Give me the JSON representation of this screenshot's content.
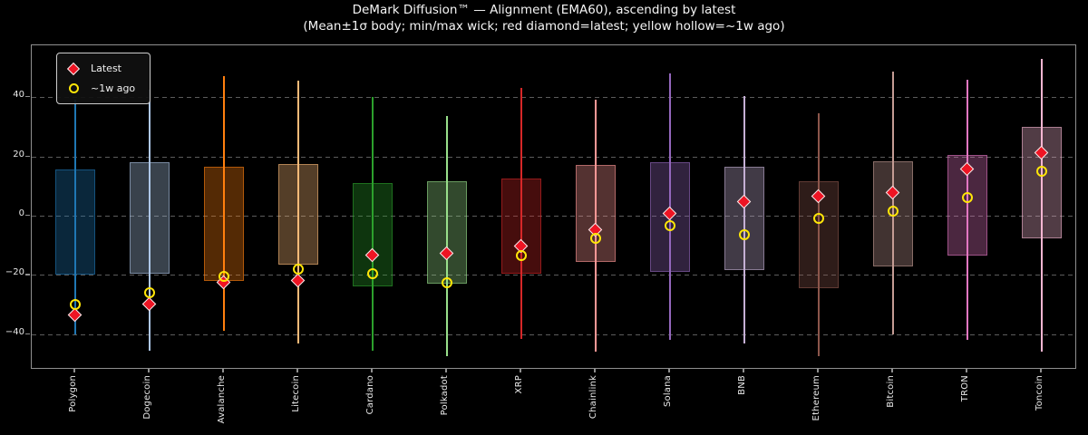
{
  "title": {
    "line1": "DeMark Diffusion™ — Alignment (EMA60), ascending by latest",
    "line2": "(Mean±1σ body; min/max wick; red diamond=latest; yellow hollow=~1w ago)"
  },
  "legend": {
    "latest_label": "Latest",
    "week_ago_label": "~1w ago",
    "latest_marker": "red-filled-diamond",
    "week_ago_marker": "yellow-hollow-circle"
  },
  "colors": {
    "background": "#000000",
    "text": "#f2f2f2",
    "frame": "#8f8f8f",
    "grid": "#5c5c5c",
    "latest_diamond": "#ee1423",
    "diamond_edge": "#f2f2f2",
    "week_ago_ring": "#ffe608"
  },
  "chart_data": {
    "type": "candlestick",
    "title": "DeMark Diffusion™ — Alignment (EMA60), ascending by latest",
    "subtitle": "(Mean±1σ body; min/max wick; red diamond=latest; yellow hollow=~1w ago)",
    "ylim": [
      -52,
      57.5
    ],
    "yticks": [
      40,
      20,
      0,
      -20,
      -40
    ],
    "ytick_labels": [
      "40",
      "20",
      "0",
      "−20",
      "−40"
    ],
    "grid": "dashed-horizontal",
    "legend_position": "upper-left",
    "categories": [
      "Polygon",
      "Dogecoin",
      "Avalanche",
      "Litecoin",
      "Cardano",
      "Polkadot",
      "XRP",
      "Chainlink",
      "Solana",
      "BNB",
      "Ethereum",
      "Bitcoin",
      "TRON",
      "Toncoin"
    ],
    "series": [
      {
        "name": "Polygon",
        "color": "#1f77b4",
        "max": 39,
        "min": -40,
        "body_high": 15.5,
        "body_low": -20,
        "latest": -33.5,
        "week_ago": -30
      },
      {
        "name": "Dogecoin",
        "color": "#aec7e8",
        "max": 42.5,
        "min": -45.5,
        "body_high": 18,
        "body_low": -19.5,
        "latest": -30,
        "week_ago": -26
      },
      {
        "name": "Avalanche",
        "color": "#ff7f0e",
        "max": 47,
        "min": -39,
        "body_high": 16.5,
        "body_low": -22,
        "latest": -22.5,
        "week_ago": -20.5
      },
      {
        "name": "Litecoin",
        "color": "#ffbb78",
        "max": 45.5,
        "min": -43,
        "body_high": 17.5,
        "body_low": -16.5,
        "latest": -22,
        "week_ago": -18
      },
      {
        "name": "Cardano",
        "color": "#2ca02c",
        "max": 40,
        "min": -45.5,
        "body_high": 11,
        "body_low": -24,
        "latest": -13.5,
        "week_ago": -19.5
      },
      {
        "name": "Polkadot",
        "color": "#98df8a",
        "max": 33.5,
        "min": -47.5,
        "body_high": 11.5,
        "body_low": -23,
        "latest": -13,
        "week_ago": -22.5
      },
      {
        "name": "XRP",
        "color": "#d62728",
        "max": 43,
        "min": -41.5,
        "body_high": 12.5,
        "body_low": -19.5,
        "latest": -10.5,
        "week_ago": -13.5
      },
      {
        "name": "Chainlink",
        "color": "#ff9896",
        "max": 39,
        "min": -46,
        "body_high": 17,
        "body_low": -15.5,
        "latest": -5,
        "week_ago": -7.5
      },
      {
        "name": "Solana",
        "color": "#9467bd",
        "max": 48,
        "min": -42,
        "body_high": 18,
        "body_low": -19,
        "latest": 0.5,
        "week_ago": -3.5
      },
      {
        "name": "BNB",
        "color": "#c5b0d5",
        "max": 40.5,
        "min": -43,
        "body_high": 16.5,
        "body_low": -18.5,
        "latest": 4.5,
        "week_ago": -6.5
      },
      {
        "name": "Ethereum",
        "color": "#8c564b",
        "max": 34.5,
        "min": -47.5,
        "body_high": 11.5,
        "body_low": -24.5,
        "latest": 6.5,
        "week_ago": -1
      },
      {
        "name": "Bitcoin",
        "color": "#c49c94",
        "max": 48.5,
        "min": -40,
        "body_high": 18.5,
        "body_low": -17,
        "latest": 7.5,
        "week_ago": 1.5
      },
      {
        "name": "TRON",
        "color": "#e377c2",
        "max": 46,
        "min": -42,
        "body_high": 20.5,
        "body_low": -13.5,
        "latest": 15.5,
        "week_ago": 6
      },
      {
        "name": "Toncoin",
        "color": "#f7b6d2",
        "max": 53,
        "min": -46,
        "body_high": 30,
        "body_low": -7.5,
        "latest": 21,
        "week_ago": 15
      }
    ]
  }
}
